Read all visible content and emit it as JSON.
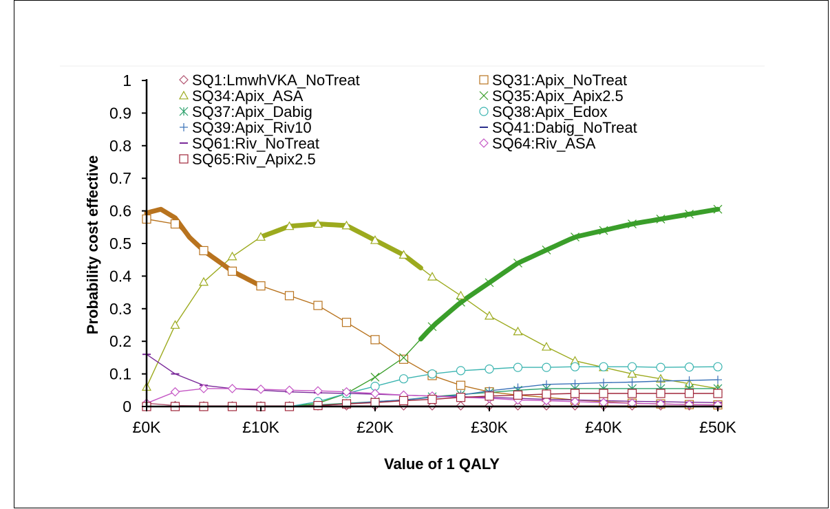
{
  "chart_data": {
    "type": "line",
    "xlabel": "Value of 1 QALY",
    "ylabel": "Probability cost effective",
    "xlim": [
      0,
      50000
    ],
    "ylim": [
      0,
      1
    ],
    "x_ticks": [
      "£0K",
      "£10K",
      "£20K",
      "£30K",
      "£40K",
      "£50K"
    ],
    "y_ticks": [
      "0",
      "0.1",
      "0.2",
      "0.3",
      "0.4",
      "0.5",
      "0.6",
      "0.7",
      "0.8",
      "0.9",
      "1"
    ],
    "grid": false,
    "legend_position": "top",
    "x": [
      0,
      2500,
      5000,
      7500,
      10000,
      12500,
      15000,
      17500,
      20000,
      22500,
      25000,
      27500,
      30000,
      32500,
      35000,
      37500,
      40000,
      42500,
      45000,
      47500,
      50000
    ],
    "series": [
      {
        "name": "SQ1:LmwhVKA_NoTreat",
        "marker": "diamond",
        "color": "#b0506e",
        "values": [
          0.01,
          0.003,
          0.002,
          0.002,
          0.002,
          0.002,
          0.002,
          0.002,
          0.002,
          0.002,
          0.002,
          0.002,
          0.002,
          0.002,
          0.002,
          0.002,
          0.002,
          0.002,
          0.002,
          0.002,
          0.002
        ]
      },
      {
        "name": "SQ31:Apix_NoTreat",
        "marker": "square",
        "color": "#b8731e",
        "values": [
          0.575,
          0.56,
          0.478,
          0.415,
          0.37,
          0.34,
          0.31,
          0.258,
          0.205,
          0.145,
          0.095,
          0.065,
          0.045,
          0.035,
          0.028,
          0.02,
          0.015,
          0.01,
          0.008,
          0.006,
          0.005
        ]
      },
      {
        "name": "SQ34:Apix_ASA",
        "marker": "triangle",
        "color": "#9caa1e",
        "values": [
          0.06,
          0.25,
          0.382,
          0.46,
          0.52,
          0.553,
          0.56,
          0.555,
          0.51,
          0.465,
          0.398,
          0.34,
          0.278,
          0.23,
          0.183,
          0.14,
          0.12,
          0.1,
          0.085,
          0.07,
          0.055
        ]
      },
      {
        "name": "SQ35:Apix_Apix2.5",
        "marker": "x",
        "color": "#3a9e2a",
        "values": [
          0.0,
          0.0,
          0.0,
          0.0,
          0.0,
          0.0,
          0.01,
          0.04,
          0.09,
          0.15,
          0.245,
          0.32,
          0.38,
          0.44,
          0.48,
          0.52,
          0.54,
          0.56,
          0.575,
          0.59,
          0.605
        ]
      },
      {
        "name": "SQ37:Apix_Dabig",
        "marker": "asterisk",
        "color": "#2aa06a",
        "values": [
          0.0,
          0.0,
          0.0,
          0.0,
          0.0,
          0.0,
          0.005,
          0.01,
          0.015,
          0.02,
          0.03,
          0.037,
          0.043,
          0.05,
          0.055,
          0.055,
          0.055,
          0.055,
          0.055,
          0.055,
          0.055
        ]
      },
      {
        "name": "SQ38:Apix_Edox",
        "marker": "circle",
        "color": "#3ab4b0",
        "values": [
          0.0,
          0.0,
          0.0,
          0.0,
          0.0,
          0.0,
          0.015,
          0.04,
          0.062,
          0.085,
          0.1,
          0.11,
          0.115,
          0.12,
          0.12,
          0.122,
          0.122,
          0.122,
          0.12,
          0.121,
          0.122
        ]
      },
      {
        "name": "SQ39:Apix_Riv10",
        "marker": "plus",
        "color": "#3a72b8",
        "values": [
          0.0,
          0.0,
          0.0,
          0.0,
          0.0,
          0.0,
          0.003,
          0.008,
          0.015,
          0.02,
          0.028,
          0.035,
          0.048,
          0.058,
          0.068,
          0.07,
          0.073,
          0.075,
          0.078,
          0.08,
          0.082
        ]
      },
      {
        "name": "SQ41:Dabig_NoTreat",
        "marker": "dash",
        "color": "#2a2e8c",
        "values": [
          0.0,
          0.0,
          0.0,
          0.0,
          0.0,
          0.0,
          0.0,
          0.0,
          0.0,
          0.0,
          0.0,
          0.0,
          0.0,
          0.0,
          0.0,
          0.0,
          0.0,
          0.0,
          0.0,
          0.0,
          0.0
        ]
      },
      {
        "name": "SQ61:Riv_NoTreat",
        "marker": "dash",
        "color": "#7a2a9a",
        "values": [
          0.16,
          0.1,
          0.065,
          0.055,
          0.05,
          0.045,
          0.042,
          0.04,
          0.038,
          0.035,
          0.032,
          0.03,
          0.028,
          0.025,
          0.022,
          0.02,
          0.018,
          0.016,
          0.015,
          0.013,
          0.012
        ]
      },
      {
        "name": "SQ64:Riv_ASA",
        "marker": "diamond",
        "color": "#c455c4",
        "values": [
          0.01,
          0.045,
          0.055,
          0.055,
          0.053,
          0.05,
          0.048,
          0.045,
          0.04,
          0.035,
          0.032,
          0.028,
          0.025,
          0.02,
          0.018,
          0.015,
          0.012,
          0.01,
          0.008,
          0.006,
          0.005
        ]
      },
      {
        "name": "SQ65:Riv_Apix2.5",
        "marker": "square",
        "color": "#a0263a",
        "values": [
          0.0,
          0.0,
          0.0,
          0.0,
          0.0,
          0.0,
          0.003,
          0.008,
          0.012,
          0.018,
          0.022,
          0.028,
          0.032,
          0.035,
          0.038,
          0.04,
          0.04,
          0.04,
          0.04,
          0.04,
          0.04
        ]
      }
    ],
    "envelope": [
      {
        "series": "SQ31:Apix_NoTreat",
        "x_range": [
          0,
          10000
        ],
        "peak": {
          "x": 1250,
          "y": 0.605
        }
      },
      {
        "series": "SQ34:Apix_ASA",
        "x_range": [
          10000,
          24000
        ]
      },
      {
        "series": "SQ35:Apix_Apix2.5",
        "x_range": [
          24000,
          50000
        ]
      }
    ]
  }
}
